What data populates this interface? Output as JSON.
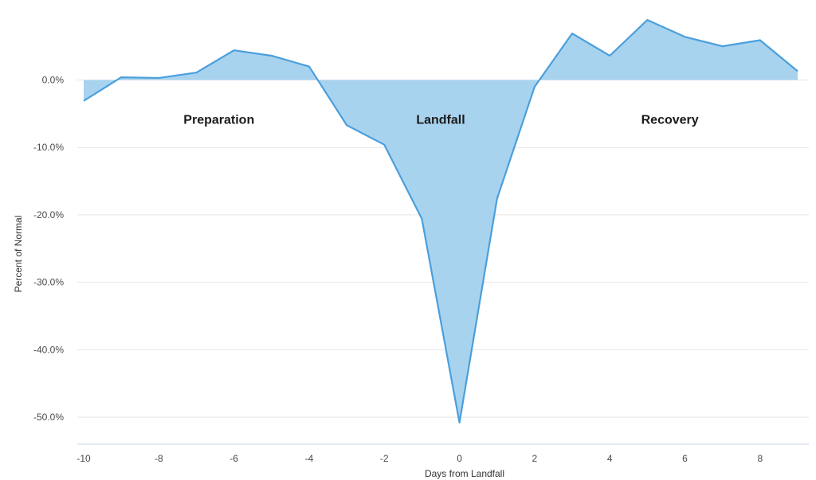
{
  "chart_data": {
    "type": "area",
    "xlabel": "Days from Landfall",
    "ylabel": "Percent of Normal",
    "xlim": [
      -10,
      9
    ],
    "ylim": [
      -54,
      9.5
    ],
    "x_ticks": [
      -10,
      -8,
      -6,
      -4,
      -2,
      0,
      2,
      4,
      6,
      8
    ],
    "y_ticks": [
      0,
      -10,
      -20,
      -30,
      -40,
      -50
    ],
    "y_tick_labels": [
      "0.0%",
      "-10.0%",
      "-20.0%",
      "-30.0%",
      "-40.0%",
      "-50.0%"
    ],
    "x": [
      -10,
      -9,
      -8,
      -7,
      -6,
      -5,
      -4,
      -3,
      -2,
      -1,
      0,
      1,
      2,
      3,
      4,
      5,
      6,
      7,
      8,
      9
    ],
    "values": [
      -3.1,
      0.4,
      0.3,
      1.1,
      4.4,
      3.6,
      2.0,
      -6.7,
      -9.6,
      -20.6,
      -50.8,
      -17.6,
      -1.0,
      6.9,
      3.6,
      8.9,
      6.4,
      5.0,
      5.9,
      1.3
    ],
    "grid": true,
    "annotations": [
      {
        "text": "Preparation",
        "x": -6.4,
        "y": -6.5
      },
      {
        "text": "Landfall",
        "x": -0.5,
        "y": -6.5
      },
      {
        "text": "Recovery",
        "x": 5.6,
        "y": -6.5
      }
    ],
    "colors": {
      "line": "#4a9fdc",
      "fill": "#a8d3ef"
    }
  }
}
